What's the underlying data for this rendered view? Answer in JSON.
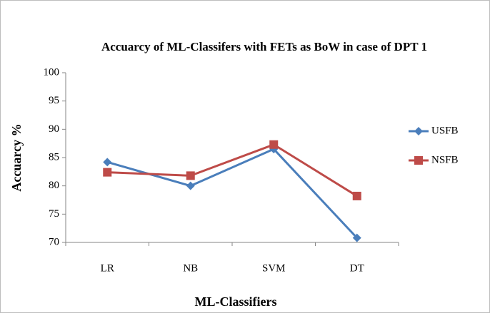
{
  "chart_data": {
    "type": "line",
    "title": "Accuarcy of ML-Classifers with FETs as BoW in case of DPT 1",
    "x_label": "ML-Classifiers",
    "y_label": "Accuarcy %",
    "categories": [
      "LR",
      "NB",
      "SVM",
      "DT"
    ],
    "series": [
      {
        "name": "USFB",
        "color": "#4a7ebb",
        "marker": "diamond",
        "values": [
          84.2,
          80,
          86.5,
          70.8
        ]
      },
      {
        "name": "NSFB",
        "color": "#be4b48",
        "marker": "square",
        "values": [
          82.4,
          81.8,
          87.3,
          78.2
        ]
      }
    ],
    "ylim": [
      70,
      100
    ],
    "yticks": [
      70,
      75,
      80,
      85,
      90,
      95,
      100
    ],
    "grid": false,
    "legend": "right"
  }
}
